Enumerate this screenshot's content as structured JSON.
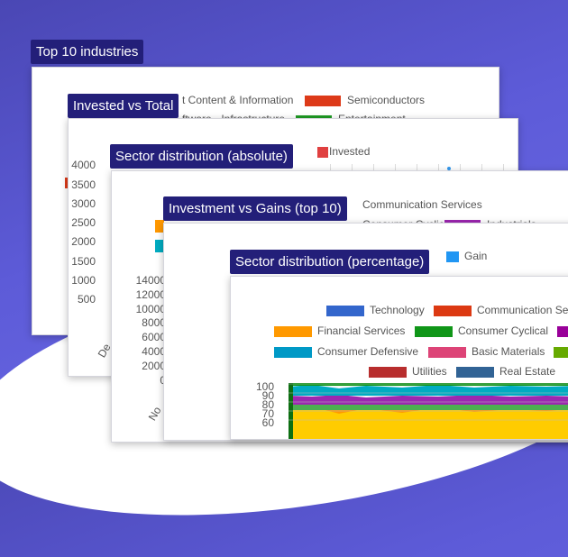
{
  "cards": {
    "top10": {
      "title": "Top 10 industries",
      "legend": [
        {
          "label": "t Content & Information"
        },
        {
          "label": "Semiconductors",
          "color": "#dd3a19"
        },
        {
          "label": "ftware - Infrastructure"
        },
        {
          "label": "Entertainment",
          "color": "#1f9b24"
        }
      ]
    },
    "invested_total": {
      "title": "Invested vs Total",
      "legend": [
        {
          "label": "Invested",
          "color": "#e04040"
        }
      ],
      "y_ticks": [
        "4000",
        "3500",
        "3000",
        "2500",
        "2000",
        "1500",
        "1000",
        "500"
      ],
      "x_label": "De"
    },
    "sector_abs": {
      "title": "Sector distribution (absolute)",
      "legend": [
        {
          "label": "Communication Services"
        },
        {
          "label": "Consumer Cyclical"
        },
        {
          "label": "Industrials",
          "color": "#9c27b0"
        }
      ],
      "y_ticks": [
        "14000",
        "12000",
        "10000",
        "8000",
        "6000",
        "4000",
        "2000",
        "0"
      ],
      "x_label": "No"
    },
    "inv_gains": {
      "title": "Investment vs Gains (top 10)",
      "legend": [
        {
          "label": "Gain",
          "color": "#2196f3"
        }
      ]
    },
    "sector_pct": {
      "title": "Sector distribution (percentage)",
      "legend": [
        {
          "label": "Technology",
          "color": "#3366cc"
        },
        {
          "label": "Communication Se",
          "color": "#dc3912"
        },
        {
          "label": "Financial Services",
          "color": "#ff9900"
        },
        {
          "label": "Consumer Cyclical",
          "color": "#109618"
        },
        {
          "label": "Consumer Defensive",
          "color": "#0099c6"
        },
        {
          "label": "Basic Materials",
          "color": "#dd4477"
        },
        {
          "label": "Utilities",
          "color": "#b82e2e"
        },
        {
          "label": "Real Estate",
          "color": "#316395"
        }
      ],
      "y_ticks": [
        "100",
        "90",
        "80",
        "70",
        "60"
      ]
    }
  }
}
